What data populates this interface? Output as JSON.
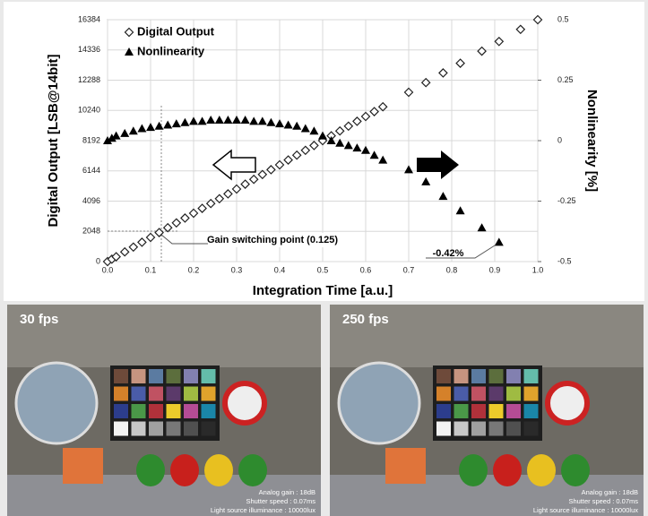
{
  "chart_data": {
    "type": "line-scatter",
    "x_label": "Integration Time [a.u.]",
    "y_label": "Digital Output [LSB@14bit]",
    "y2_label": "Nonlinearity [%]",
    "x": [
      0,
      0.01,
      0.02,
      0.04,
      0.06,
      0.08,
      0.1,
      0.12,
      0.14,
      0.16,
      0.18,
      0.2,
      0.22,
      0.24,
      0.26,
      0.28,
      0.3,
      0.32,
      0.34,
      0.36,
      0.38,
      0.4,
      0.42,
      0.44,
      0.46,
      0.48,
      0.5,
      0.52,
      0.54,
      0.56,
      0.58,
      0.6,
      0.62,
      0.64,
      0.7,
      0.74,
      0.78,
      0.82,
      0.87,
      0.91,
      0.96,
      1.0
    ],
    "series": [
      {
        "name": "Digital Output",
        "marker": "diamond",
        "color": "#222222",
        "values": [
          0,
          164,
          328,
          655,
          983,
          1311,
          1638,
          1966,
          2294,
          2621,
          2949,
          3277,
          3604,
          3932,
          4260,
          4588,
          4915,
          5243,
          5571,
          5898,
          6226,
          6554,
          6881,
          7209,
          7537,
          7864,
          8192,
          8520,
          8847,
          9175,
          9503,
          9830,
          10158,
          10486,
          11469,
          12124,
          12780,
          13435,
          14254,
          14909,
          15729,
          16384
        ]
      },
      {
        "name": "Nonlinearity",
        "marker": "triangle",
        "color": "#000000",
        "axis": "y2",
        "values": [
          0,
          0.01,
          0.02,
          0.03,
          0.04,
          0.05,
          0.055,
          0.06,
          0.065,
          0.07,
          0.075,
          0.08,
          0.08,
          0.085,
          0.085,
          0.085,
          0.085,
          0.085,
          0.08,
          0.08,
          0.075,
          0.07,
          0.065,
          0.06,
          0.05,
          0.04,
          0.02,
          0.0,
          -0.01,
          -0.02,
          -0.03,
          -0.04,
          -0.06,
          -0.08,
          -0.12,
          -0.17,
          -0.23,
          -0.29,
          -0.36,
          -0.42,
          null,
          null
        ]
      }
    ],
    "xlim": [
      0,
      1
    ],
    "xticks": [
      {
        "value": 0,
        "label": "0.0"
      },
      0.1,
      0.2,
      0.3,
      0.4,
      0.5,
      0.6,
      0.7,
      0.8,
      0.9,
      {
        "value": 1,
        "label": "1.0"
      }
    ],
    "ylim": [
      0,
      16384
    ],
    "yticks": [
      0,
      2048,
      4096,
      6144,
      8192,
      10240,
      12288,
      14336,
      16384
    ],
    "y2lim": [
      -0.5,
      0.5
    ],
    "y2ticks": [
      -0.5,
      -0.25,
      0,
      0.25,
      0.5
    ],
    "grid": true,
    "legend": "upper left",
    "annotations": [
      "Gain switching point (0.125)",
      "-0.42%"
    ]
  },
  "panels": [
    {
      "label": "30 fps",
      "caption": [
        "Analog gain : 18dB",
        "Shutter speed : 0.07ms",
        "Light source illuminance : 10000lux"
      ]
    },
    {
      "label": "250 fps",
      "caption": [
        "Analog gain : 18dB",
        "Shutter speed : 0.07ms",
        "Light source illuminance : 10000lux"
      ]
    }
  ]
}
